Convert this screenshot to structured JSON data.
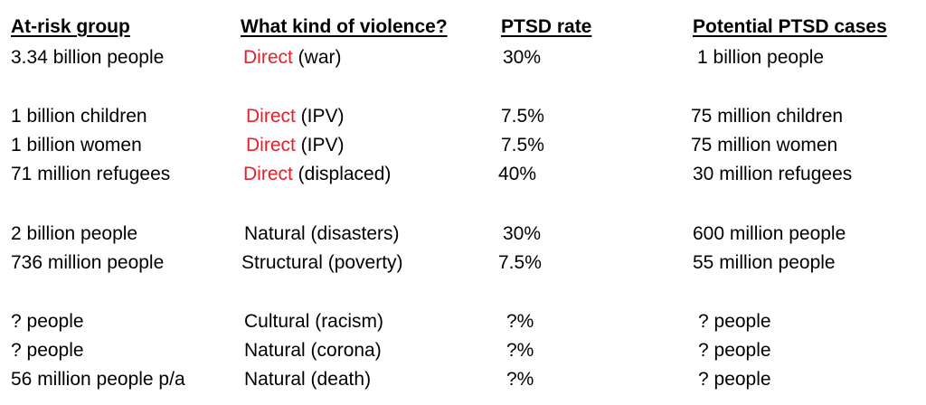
{
  "headers": {
    "group": "At-risk group",
    "violence": "What kind of violence?",
    "rate": "PTSD rate",
    "cases": "Potential PTSD cases"
  },
  "colors": {
    "direct_highlight": "#e8202a"
  },
  "rows": [
    {
      "group": "3.34 billion people",
      "violence_highlight": "Direct",
      "violence_rest": " (war)",
      "rate": "30%",
      "cases": "1 billion people"
    },
    {
      "group": "1 billion children",
      "violence_highlight": "Direct",
      "violence_rest": " (IPV)",
      "rate": "7.5%",
      "cases": "75 million children"
    },
    {
      "group": "1 billion women",
      "violence_highlight": "Direct",
      "violence_rest": " (IPV)",
      "rate": "7.5%",
      "cases": "75 million women"
    },
    {
      "group": "71 million refugees",
      "violence_highlight": "Direct",
      "violence_rest": " (displaced)",
      "rate": "40%",
      "cases": "30 million refugees"
    },
    {
      "group": "2 billion people",
      "violence_highlight": "",
      "violence_rest": "Natural (disasters)",
      "rate": "30%",
      "cases": "600 million people"
    },
    {
      "group": "736 million people",
      "violence_highlight": "",
      "violence_rest": "Structural (poverty)",
      "rate": "7.5%",
      "cases": "55 million people"
    },
    {
      "group": "? people",
      "violence_highlight": "",
      "violence_rest": "Cultural (racism)",
      "rate": "?%",
      "cases": "? people"
    },
    {
      "group": "? people",
      "violence_highlight": "",
      "violence_rest": "Natural (corona)",
      "rate": "?%",
      "cases": "? people"
    },
    {
      "group": "56 million people p/a",
      "violence_highlight": "",
      "violence_rest": "Natural (death)",
      "rate": "?%",
      "cases": "? people"
    }
  ]
}
